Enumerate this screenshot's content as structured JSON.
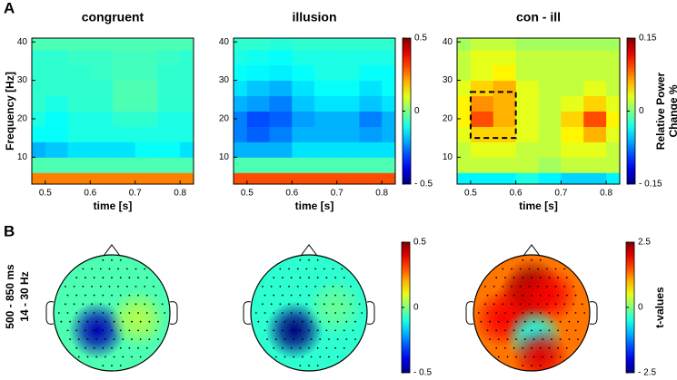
{
  "panel_labels": [
    "A",
    "B"
  ],
  "row_label": [
    "500 - 850 ms",
    "14 - 30 Hz"
  ],
  "chart_data": [
    {
      "type": "heatmap",
      "title": "congruent",
      "xlabel": "time [s]",
      "ylabel": "Frequency [Hz]",
      "x": [
        0.475,
        0.525,
        0.575,
        0.625,
        0.675,
        0.725,
        0.775,
        0.825
      ],
      "y": [
        4,
        8,
        12,
        16,
        20,
        24,
        28,
        32,
        36,
        40
      ],
      "z": [
        [
          0.25,
          0.25,
          0.25,
          0.25,
          0.25,
          0.25,
          0.25,
          0.25
        ],
        [
          -0.05,
          -0.05,
          -0.05,
          -0.05,
          -0.05,
          -0.05,
          -0.05,
          -0.05
        ],
        [
          -0.2,
          -0.18,
          -0.15,
          -0.15,
          -0.15,
          -0.12,
          -0.12,
          -0.15
        ],
        [
          -0.12,
          -0.12,
          -0.1,
          -0.1,
          -0.1,
          -0.1,
          -0.1,
          -0.1
        ],
        [
          -0.1,
          -0.12,
          -0.1,
          -0.1,
          -0.08,
          -0.08,
          -0.1,
          -0.1
        ],
        [
          -0.08,
          -0.1,
          -0.08,
          -0.08,
          -0.05,
          -0.05,
          -0.08,
          -0.08
        ],
        [
          -0.08,
          -0.08,
          -0.08,
          -0.08,
          -0.05,
          -0.05,
          -0.08,
          -0.08
        ],
        [
          -0.08,
          -0.08,
          -0.08,
          -0.07,
          -0.06,
          -0.06,
          -0.08,
          -0.08
        ],
        [
          -0.08,
          -0.08,
          -0.07,
          -0.07,
          -0.06,
          -0.06,
          -0.07,
          -0.08
        ],
        [
          -0.05,
          -0.05,
          -0.05,
          -0.05,
          -0.05,
          -0.05,
          -0.05,
          -0.05
        ]
      ],
      "clim": [
        -0.5,
        0.5
      ],
      "xlim": [
        0.47,
        0.83
      ],
      "ylim": [
        3,
        41
      ],
      "xticks": [
        0.5,
        0.6,
        0.7,
        0.8
      ],
      "yticks": [
        10,
        20,
        30,
        40
      ]
    },
    {
      "type": "heatmap",
      "title": "illusion",
      "xlabel": "time [s]",
      "x": [
        0.475,
        0.525,
        0.575,
        0.625,
        0.675,
        0.725,
        0.775,
        0.825
      ],
      "y": [
        4,
        8,
        12,
        16,
        20,
        24,
        28,
        32,
        36,
        40
      ],
      "z": [
        [
          0.3,
          0.3,
          0.3,
          0.3,
          0.3,
          0.3,
          0.3,
          0.3
        ],
        [
          -0.05,
          -0.05,
          -0.05,
          -0.05,
          -0.05,
          -0.05,
          -0.05,
          -0.05
        ],
        [
          -0.2,
          -0.2,
          -0.2,
          -0.15,
          -0.15,
          -0.15,
          -0.15,
          -0.15
        ],
        [
          -0.25,
          -0.28,
          -0.25,
          -0.2,
          -0.2,
          -0.2,
          -0.22,
          -0.2
        ],
        [
          -0.25,
          -0.3,
          -0.28,
          -0.22,
          -0.2,
          -0.2,
          -0.25,
          -0.2
        ],
        [
          -0.2,
          -0.22,
          -0.25,
          -0.18,
          -0.15,
          -0.15,
          -0.18,
          -0.15
        ],
        [
          -0.15,
          -0.18,
          -0.2,
          -0.15,
          -0.12,
          -0.12,
          -0.15,
          -0.12
        ],
        [
          -0.12,
          -0.13,
          -0.14,
          -0.12,
          -0.1,
          -0.1,
          -0.12,
          -0.12
        ],
        [
          -0.1,
          -0.11,
          -0.12,
          -0.1,
          -0.1,
          -0.1,
          -0.1,
          -0.1
        ],
        [
          -0.08,
          -0.08,
          -0.09,
          -0.08,
          -0.08,
          -0.08,
          -0.08,
          -0.08
        ]
      ],
      "clim": [
        -0.5,
        0.5
      ],
      "xlim": [
        0.47,
        0.83
      ],
      "ylim": [
        3,
        41
      ],
      "xticks": [
        0.5,
        0.6,
        0.7,
        0.8
      ],
      "yticks": [
        10,
        20,
        30,
        40
      ],
      "colorbar": {
        "lim": [
          -0.5,
          0.5
        ],
        "ticks": [
          0.5,
          0,
          {
            "value": -0.5,
            "label": "- 0.5"
          }
        ]
      }
    },
    {
      "type": "heatmap",
      "title": "con - ill",
      "xlabel": "time [s]",
      "x": [
        0.475,
        0.525,
        0.575,
        0.625,
        0.675,
        0.725,
        0.775,
        0.825
      ],
      "y": [
        4,
        8,
        12,
        16,
        20,
        24,
        28,
        32,
        36,
        40
      ],
      "z": [
        [
          -0.04,
          -0.04,
          -0.04,
          -0.03,
          -0.04,
          -0.05,
          -0.05,
          -0.04
        ],
        [
          0.02,
          0.02,
          0.02,
          0.02,
          0.01,
          0.02,
          0.02,
          0.02
        ],
        [
          0.02,
          0.03,
          0.03,
          0.02,
          0.02,
          0.03,
          0.03,
          0.02
        ],
        [
          0.03,
          0.05,
          0.05,
          0.03,
          0.02,
          0.04,
          0.06,
          0.03
        ],
        [
          0.04,
          0.09,
          0.06,
          0.03,
          0.02,
          0.05,
          0.09,
          0.04
        ],
        [
          0.04,
          0.07,
          0.06,
          0.03,
          0.02,
          0.03,
          0.05,
          0.03
        ],
        [
          0.03,
          0.05,
          0.06,
          0.03,
          0.02,
          0.02,
          0.03,
          0.02
        ],
        [
          0.02,
          0.03,
          0.04,
          0.02,
          0.02,
          0.02,
          0.02,
          0.02
        ],
        [
          0.02,
          0.03,
          0.03,
          0.02,
          0.02,
          0.02,
          0.02,
          0.02
        ],
        [
          0.01,
          0.02,
          0.02,
          0.01,
          0.01,
          0.01,
          0.01,
          0.01
        ]
      ],
      "clim": [
        -0.15,
        0.15
      ],
      "xlim": [
        0.47,
        0.83
      ],
      "ylim": [
        3,
        41
      ],
      "xticks": [
        0.5,
        0.6,
        0.7,
        0.8
      ],
      "yticks": [
        10,
        20,
        30,
        40
      ],
      "box": {
        "x": [
          0.5,
          0.6
        ],
        "y": [
          15,
          27
        ]
      },
      "colorbar": {
        "lim": [
          -0.15,
          0.15
        ],
        "ticks": [
          0.15,
          0,
          {
            "value": -0.15,
            "label": "- 0.15"
          }
        ],
        "label": [
          "Relative Power",
          "Change %"
        ]
      }
    },
    {
      "type": "topomap",
      "clim": [
        -0.5,
        0.5
      ],
      "background": -0.05,
      "sources": [
        {
          "x": -0.25,
          "y": -0.3,
          "value": -0.45
        },
        {
          "x": 0.45,
          "y": -0.1,
          "value": 0.05
        }
      ]
    },
    {
      "type": "topomap",
      "clim": [
        -0.5,
        0.5
      ],
      "background": -0.08,
      "sources": [
        {
          "x": -0.25,
          "y": -0.3,
          "value": -0.5
        },
        {
          "x": 0.45,
          "y": 0.1,
          "value": -0.02
        }
      ],
      "colorbar": {
        "lim": [
          -0.5,
          0.5
        ],
        "ticks": [
          0.5,
          0,
          {
            "value": -0.5,
            "label": "- 0.5"
          }
        ]
      }
    },
    {
      "type": "topomap",
      "clim": [
        -2.5,
        2.5
      ],
      "background": 1.3,
      "sources": [
        {
          "x": 0,
          "y": 0.45,
          "value": 2.4
        },
        {
          "x": -0.15,
          "y": 0.2,
          "value": 2.1
        },
        {
          "x": 0.3,
          "y": 0.3,
          "value": 1.9
        },
        {
          "x": -0.5,
          "y": -0.1,
          "value": 1.9
        },
        {
          "x": 0.05,
          "y": -0.4,
          "value": -0.6
        },
        {
          "x": 0.15,
          "y": -0.75,
          "value": 2.0
        }
      ],
      "colorbar": {
        "lim": [
          -2.5,
          2.5
        ],
        "ticks": [
          2.5,
          0,
          {
            "value": -2.5,
            "label": "- 2.5"
          }
        ],
        "label": [
          "t-values"
        ]
      }
    }
  ]
}
